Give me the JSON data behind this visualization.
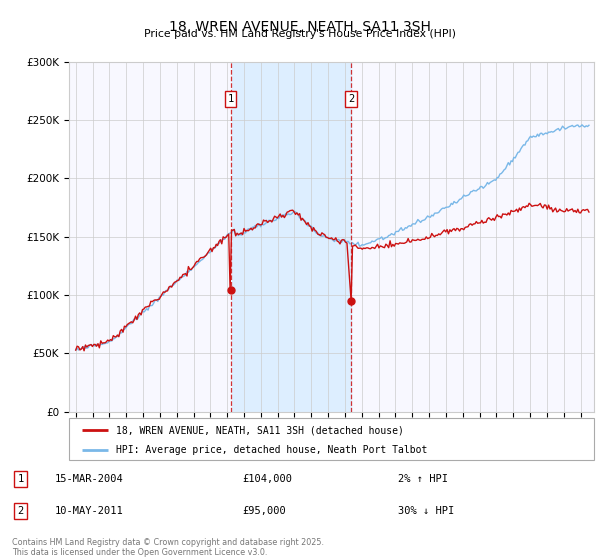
{
  "title": "18, WREN AVENUE, NEATH, SA11 3SH",
  "subtitle": "Price paid vs. HM Land Registry's House Price Index (HPI)",
  "ylim": [
    0,
    300000
  ],
  "yticks": [
    0,
    50000,
    100000,
    150000,
    200000,
    250000,
    300000
  ],
  "hpi_color": "#7ab8e8",
  "price_color": "#cc1111",
  "sale1_year": 2004.21,
  "sale1_price": 104000,
  "sale2_year": 2011.37,
  "sale2_price": 95000,
  "shade_color": "#ddeeff",
  "vline_color": "#cc1111",
  "legend_label_red": "18, WREN AVENUE, NEATH, SA11 3SH (detached house)",
  "legend_label_blue": "HPI: Average price, detached house, Neath Port Talbot",
  "footer": "Contains HM Land Registry data © Crown copyright and database right 2025.\nThis data is licensed under the Open Government Licence v3.0.",
  "x_start_year": 1995,
  "x_end_year": 2025,
  "bg_color": "#f8f8ff"
}
